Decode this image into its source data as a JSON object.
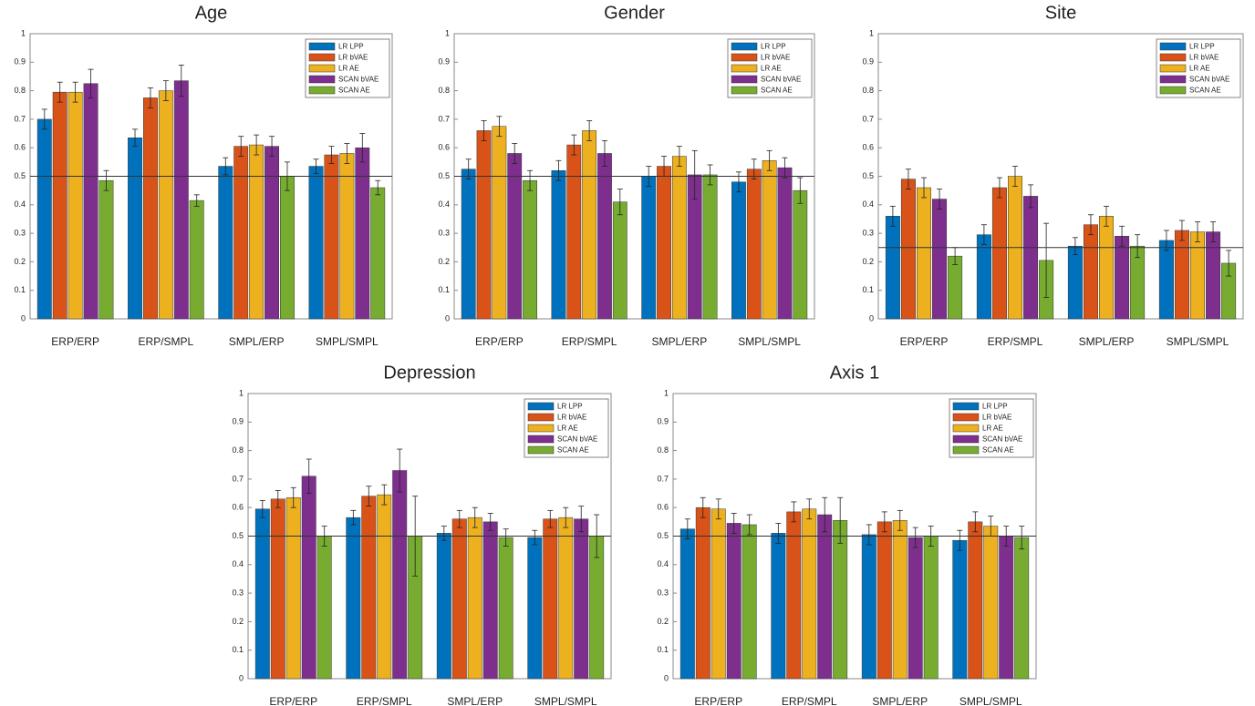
{
  "chart_data": [
    {
      "type": "bar",
      "title": "Age",
      "categories": [
        "ERP/ERP",
        "ERP/SMPL",
        "SMPL/ERP",
        "SMPL/SMPL"
      ],
      "series": [
        {
          "name": "LR LPP",
          "color": "#0072BD",
          "values": [
            0.7,
            0.635,
            0.535,
            0.535
          ],
          "errors": [
            0.035,
            0.03,
            0.03,
            0.025
          ]
        },
        {
          "name": "LR bVAE",
          "color": "#D95319",
          "values": [
            0.795,
            0.775,
            0.605,
            0.575
          ],
          "errors": [
            0.035,
            0.035,
            0.035,
            0.03
          ]
        },
        {
          "name": "LR AE",
          "color": "#EDB120",
          "values": [
            0.795,
            0.8,
            0.61,
            0.58
          ],
          "errors": [
            0.035,
            0.035,
            0.035,
            0.035
          ]
        },
        {
          "name": "SCAN bVAE",
          "color": "#7E2F8E",
          "values": [
            0.825,
            0.835,
            0.605,
            0.6
          ],
          "errors": [
            0.05,
            0.055,
            0.035,
            0.05
          ]
        },
        {
          "name": "SCAN AE",
          "color": "#77AC30",
          "values": [
            0.485,
            0.415,
            0.5,
            0.46
          ],
          "errors": [
            0.035,
            0.02,
            0.05,
            0.025
          ]
        }
      ],
      "ylim": [
        0,
        1
      ],
      "yticks": [
        0,
        0.1,
        0.2,
        0.3,
        0.4,
        0.5,
        0.6,
        0.7,
        0.8,
        0.9,
        1
      ],
      "hline": 0.5,
      "legend": "upper right"
    },
    {
      "type": "bar",
      "title": "Gender",
      "categories": [
        "ERP/ERP",
        "ERP/SMPL",
        "SMPL/ERP",
        "SMPL/SMPL"
      ],
      "series": [
        {
          "name": "LR LPP",
          "color": "#0072BD",
          "values": [
            0.525,
            0.52,
            0.5,
            0.48
          ],
          "errors": [
            0.035,
            0.035,
            0.035,
            0.035
          ]
        },
        {
          "name": "LR bVAE",
          "color": "#D95319",
          "values": [
            0.66,
            0.61,
            0.535,
            0.525
          ],
          "errors": [
            0.035,
            0.035,
            0.035,
            0.035
          ]
        },
        {
          "name": "LR AE",
          "color": "#EDB120",
          "values": [
            0.675,
            0.66,
            0.57,
            0.555
          ],
          "errors": [
            0.035,
            0.035,
            0.035,
            0.035
          ]
        },
        {
          "name": "SCAN bVAE",
          "color": "#7E2F8E",
          "values": [
            0.58,
            0.58,
            0.505,
            0.53
          ],
          "errors": [
            0.035,
            0.045,
            0.085,
            0.035
          ]
        },
        {
          "name": "SCAN AE",
          "color": "#77AC30",
          "values": [
            0.485,
            0.41,
            0.505,
            0.45
          ],
          "errors": [
            0.035,
            0.045,
            0.035,
            0.045
          ]
        }
      ],
      "ylim": [
        0,
        1
      ],
      "yticks": [
        0,
        0.1,
        0.2,
        0.3,
        0.4,
        0.5,
        0.6,
        0.7,
        0.8,
        0.9,
        1
      ],
      "hline": 0.5,
      "legend": "upper right"
    },
    {
      "type": "bar",
      "title": "Site",
      "categories": [
        "ERP/ERP",
        "ERP/SMPL",
        "SMPL/ERP",
        "SMPL/SMPL"
      ],
      "series": [
        {
          "name": "LR LPP",
          "color": "#0072BD",
          "values": [
            0.36,
            0.295,
            0.255,
            0.275
          ],
          "errors": [
            0.035,
            0.035,
            0.03,
            0.035
          ]
        },
        {
          "name": "LR bVAE",
          "color": "#D95319",
          "values": [
            0.49,
            0.46,
            0.33,
            0.31
          ],
          "errors": [
            0.035,
            0.035,
            0.035,
            0.035
          ]
        },
        {
          "name": "LR AE",
          "color": "#EDB120",
          "values": [
            0.46,
            0.5,
            0.36,
            0.305
          ],
          "errors": [
            0.035,
            0.035,
            0.035,
            0.035
          ]
        },
        {
          "name": "SCAN bVAE",
          "color": "#7E2F8E",
          "values": [
            0.42,
            0.43,
            0.29,
            0.305
          ],
          "errors": [
            0.035,
            0.04,
            0.035,
            0.035
          ]
        },
        {
          "name": "SCAN AE",
          "color": "#77AC30",
          "values": [
            0.22,
            0.205,
            0.255,
            0.195
          ],
          "errors": [
            0.03,
            0.13,
            0.04,
            0.045
          ]
        }
      ],
      "ylim": [
        0,
        1
      ],
      "yticks": [
        0,
        0.1,
        0.2,
        0.3,
        0.4,
        0.5,
        0.6,
        0.7,
        0.8,
        0.9,
        1
      ],
      "hline": 0.25,
      "legend": "upper right"
    },
    {
      "type": "bar",
      "title": "Depression",
      "categories": [
        "ERP/ERP",
        "ERP/SMPL",
        "SMPL/ERP",
        "SMPL/SMPL"
      ],
      "series": [
        {
          "name": "LR LPP",
          "color": "#0072BD",
          "values": [
            0.595,
            0.565,
            0.51,
            0.495
          ],
          "errors": [
            0.03,
            0.025,
            0.025,
            0.025
          ]
        },
        {
          "name": "LR bVAE",
          "color": "#D95319",
          "values": [
            0.63,
            0.64,
            0.56,
            0.56
          ],
          "errors": [
            0.03,
            0.035,
            0.03,
            0.03
          ]
        },
        {
          "name": "LR AE",
          "color": "#EDB120",
          "values": [
            0.635,
            0.645,
            0.565,
            0.565
          ],
          "errors": [
            0.035,
            0.035,
            0.035,
            0.035
          ]
        },
        {
          "name": "SCAN bVAE",
          "color": "#7E2F8E",
          "values": [
            0.71,
            0.73,
            0.55,
            0.56
          ],
          "errors": [
            0.06,
            0.075,
            0.03,
            0.045
          ]
        },
        {
          "name": "SCAN AE",
          "color": "#77AC30",
          "values": [
            0.5,
            0.5,
            0.495,
            0.5
          ],
          "errors": [
            0.035,
            0.14,
            0.03,
            0.075
          ]
        }
      ],
      "ylim": [
        0,
        1
      ],
      "yticks": [
        0,
        0.1,
        0.2,
        0.3,
        0.4,
        0.5,
        0.6,
        0.7,
        0.8,
        0.9,
        1
      ],
      "hline": 0.5,
      "legend": "upper right"
    },
    {
      "type": "bar",
      "title": "Axis 1",
      "categories": [
        "ERP/ERP",
        "ERP/SMPL",
        "SMPL/ERP",
        "SMPL/SMPL"
      ],
      "series": [
        {
          "name": "LR LPP",
          "color": "#0072BD",
          "values": [
            0.525,
            0.51,
            0.505,
            0.485
          ],
          "errors": [
            0.035,
            0.035,
            0.035,
            0.035
          ]
        },
        {
          "name": "LR bVAE",
          "color": "#D95319",
          "values": [
            0.6,
            0.585,
            0.55,
            0.55
          ],
          "errors": [
            0.035,
            0.035,
            0.035,
            0.035
          ]
        },
        {
          "name": "LR AE",
          "color": "#EDB120",
          "values": [
            0.595,
            0.595,
            0.555,
            0.535
          ],
          "errors": [
            0.035,
            0.035,
            0.035,
            0.035
          ]
        },
        {
          "name": "SCAN bVAE",
          "color": "#7E2F8E",
          "values": [
            0.545,
            0.575,
            0.495,
            0.5
          ],
          "errors": [
            0.035,
            0.06,
            0.035,
            0.035
          ]
        },
        {
          "name": "SCAN AE",
          "color": "#77AC30",
          "values": [
            0.54,
            0.555,
            0.5,
            0.495
          ],
          "errors": [
            0.035,
            0.08,
            0.035,
            0.04
          ]
        }
      ],
      "ylim": [
        0,
        1
      ],
      "yticks": [
        0,
        0.1,
        0.2,
        0.3,
        0.4,
        0.5,
        0.6,
        0.7,
        0.8,
        0.9,
        1
      ],
      "hline": 0.5,
      "legend": "upper right"
    }
  ]
}
